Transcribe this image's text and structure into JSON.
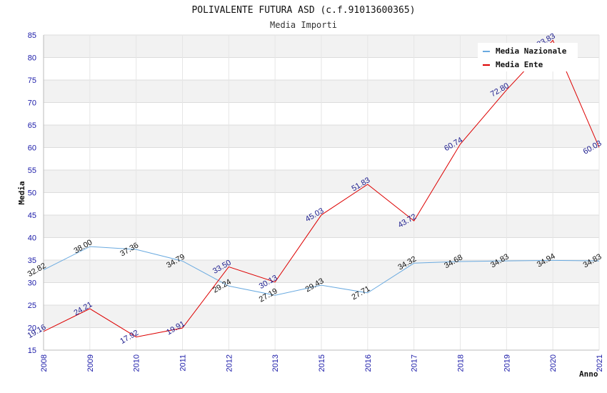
{
  "chart_data": {
    "type": "line",
    "title": "POLIVALENTE FUTURA ASD (c.f.91013600365)",
    "subtitle": "Media Importi",
    "xlabel": "Anno",
    "ylabel": "Media",
    "ylim": [
      15,
      85
    ],
    "ytick_step": 5,
    "grid": true,
    "legend_position": "top-right",
    "categories": [
      "2008",
      "2009",
      "2010",
      "2011",
      "2012",
      "2013",
      "2015",
      "2016",
      "2017",
      "2018",
      "2019",
      "2020",
      "2021"
    ],
    "series": [
      {
        "name": "Media Nazionale",
        "color": "#6aaae0",
        "label_color": "#111111",
        "values": [
          32.82,
          38.0,
          37.36,
          34.79,
          29.24,
          27.19,
          29.43,
          27.71,
          34.32,
          34.68,
          34.83,
          34.94,
          34.83
        ],
        "labels": [
          "32.82",
          "38.00",
          "37.36",
          "34.79",
          "29.24",
          "27.19",
          "29.43",
          "27.71",
          "34.32",
          "34.68",
          "34.83",
          "34.94",
          "34.83"
        ]
      },
      {
        "name": "Media Ente",
        "color": "#dd0000",
        "label_color": "#1a1a8c",
        "values": [
          19.16,
          24.21,
          17.92,
          19.91,
          33.5,
          30.13,
          45.03,
          51.83,
          43.72,
          60.74,
          72.8,
          83.83,
          60.03
        ],
        "labels": [
          "19.16",
          "24.21",
          "17.92",
          "19.91",
          "33.50",
          "30.13",
          "45.03",
          "51.83",
          "43.72",
          "60.74",
          "72.80",
          "83.83",
          "60.03"
        ]
      }
    ]
  }
}
